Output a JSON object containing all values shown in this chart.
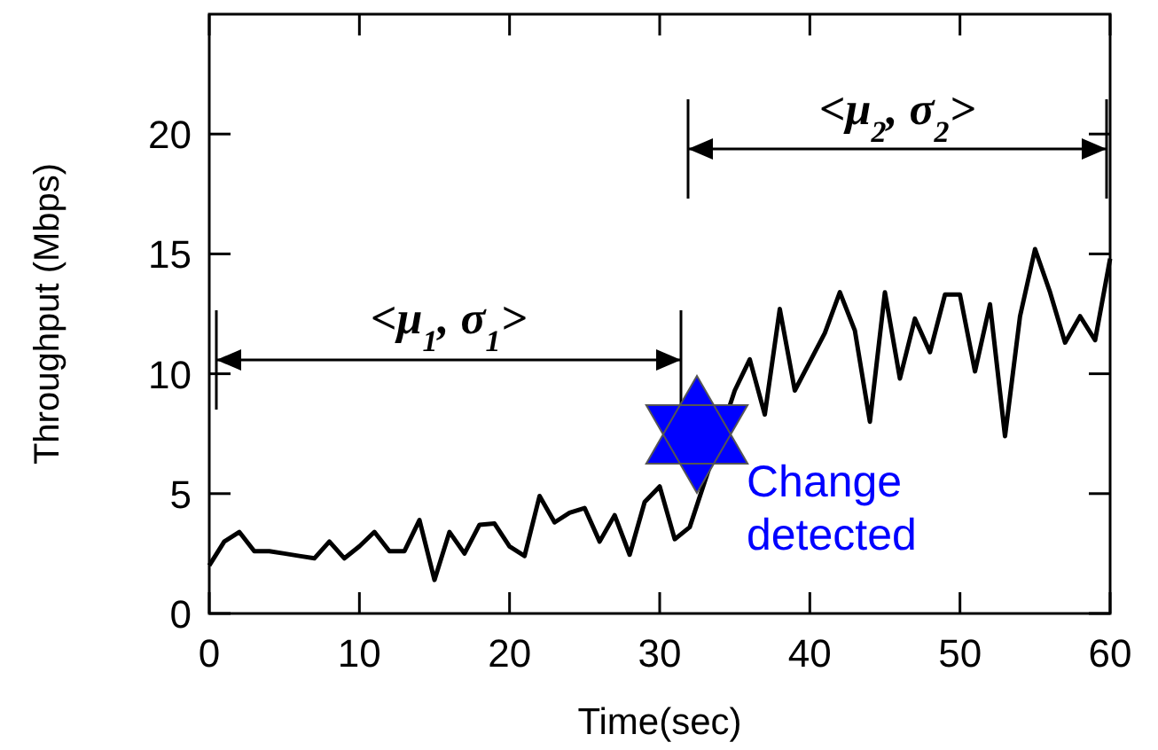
{
  "chart_data": {
    "type": "line",
    "xlabel": "Time(sec)",
    "ylabel": "Throughput (Mbps)",
    "x": [
      0,
      1,
      2,
      3,
      4,
      5,
      6,
      7,
      8,
      9,
      10,
      11,
      12,
      13,
      14,
      15,
      16,
      17,
      18,
      19,
      20,
      21,
      22,
      23,
      24,
      25,
      26,
      27,
      28,
      29,
      30,
      31,
      32,
      33,
      34,
      35,
      36,
      37,
      38,
      39,
      40,
      41,
      42,
      43,
      44,
      45,
      46,
      47,
      48,
      49,
      50,
      51,
      52,
      53,
      54,
      55,
      56,
      57,
      58,
      59,
      60
    ],
    "series": [
      {
        "color": "#000000",
        "values": [
          2.0,
          3.0,
          3.4,
          2.6,
          2.6,
          2.5,
          2.4,
          2.3,
          3.0,
          2.3,
          2.8,
          3.4,
          2.6,
          2.6,
          3.9,
          1.4,
          3.4,
          2.5,
          3.7,
          3.75,
          2.8,
          2.4,
          4.9,
          3.8,
          4.2,
          4.4,
          3.0,
          4.1,
          2.45,
          4.65,
          5.3,
          3.1,
          3.6,
          null,
          null,
          9.3,
          10.6,
          8.3,
          12.7,
          9.3,
          10.5,
          11.7,
          13.4,
          11.8,
          8.0,
          13.4,
          9.8,
          12.3,
          10.9,
          13.3,
          13.3,
          10.1,
          12.9,
          7.4,
          12.4,
          15.2,
          13.4,
          11.3,
          12.4,
          11.4,
          14.8
        ]
      }
    ],
    "xlim": [
      0,
      60
    ],
    "ylim": [
      0,
      25
    ],
    "xticks": [
      0,
      10,
      20,
      30,
      40,
      50,
      60
    ],
    "yticks": [
      0,
      5,
      10,
      15,
      20
    ],
    "grid": false,
    "marker": "none",
    "line_style": "solid",
    "annotations": [
      "<μ$_{1}$, σ$_{1}$>",
      "<μ$_{2}$, σ$_{2}$>",
      "Change detected"
    ]
  }
}
